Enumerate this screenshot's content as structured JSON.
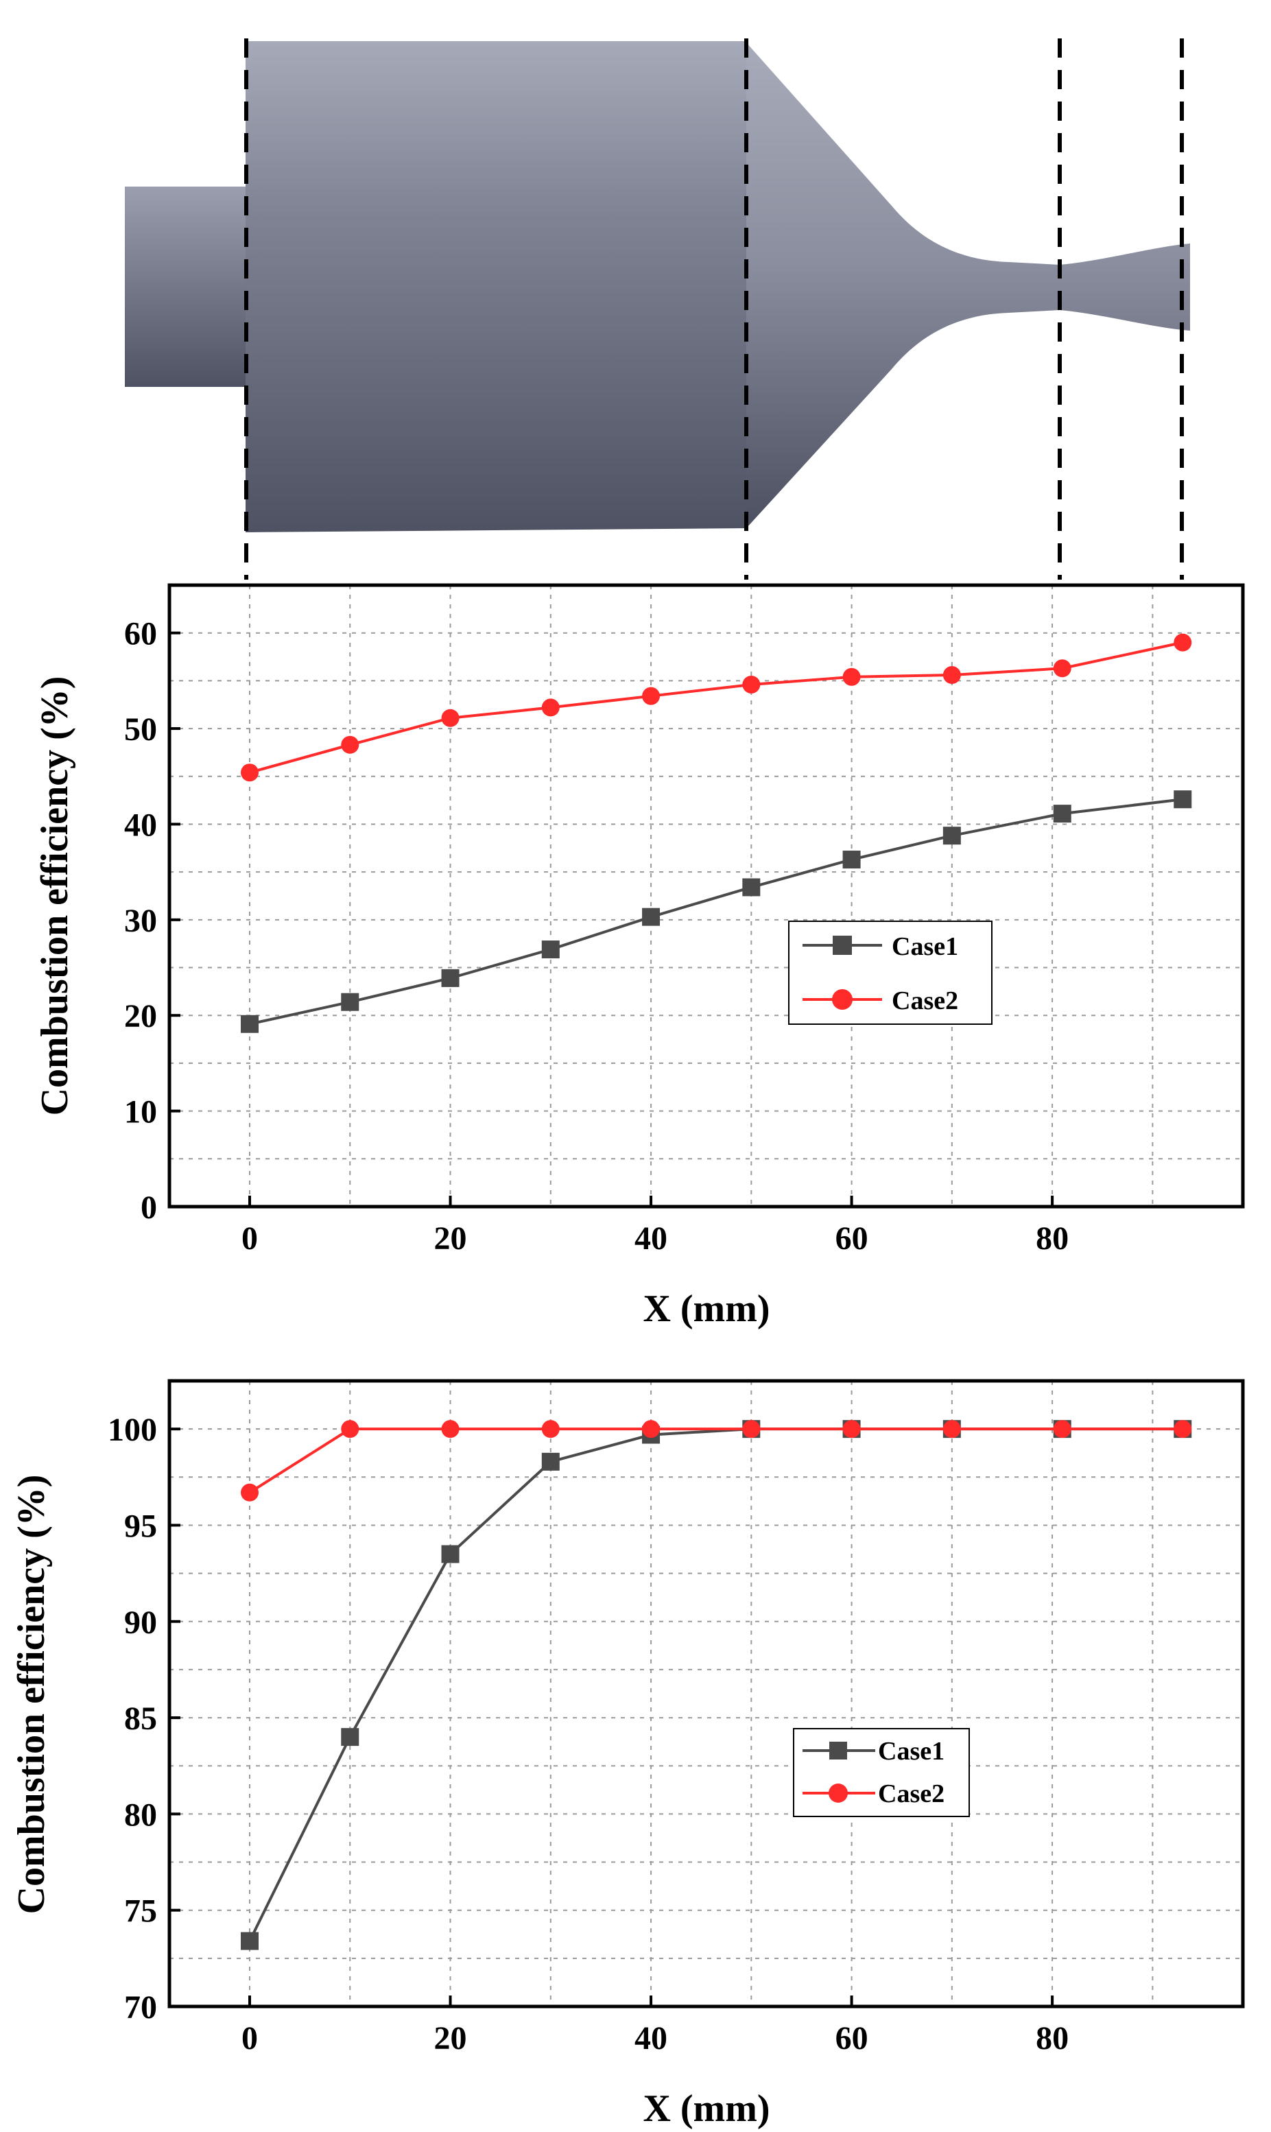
{
  "figure": {
    "illustration": "combustor-geometry-rendering"
  },
  "colors": {
    "case1": "#4a4a4a",
    "case2": "#ff2a2a",
    "geometry_light": "#a3a6b4",
    "geometry_dark": "#4f5363"
  },
  "chart_data": [
    {
      "type": "line",
      "title": "",
      "xlabel": "X (mm)",
      "ylabel": "Combustion efficiency (%)",
      "xlim": [
        -8,
        99
      ],
      "ylim": [
        0,
        65
      ],
      "xticks": [
        "0",
        "20",
        "40",
        "60",
        "80"
      ],
      "yticks": [
        "0",
        "10",
        "20",
        "30",
        "40",
        "50",
        "60"
      ],
      "grid": true,
      "legend_position": "center-right",
      "series": [
        {
          "name": "Case1",
          "marker": "square",
          "color": "#4a4a4a",
          "x": [
            0,
            10,
            20,
            30,
            40,
            50,
            60,
            70,
            81,
            93
          ],
          "y": [
            19.1,
            21.4,
            23.9,
            26.9,
            30.3,
            33.4,
            36.3,
            38.8,
            41.1,
            42.6
          ]
        },
        {
          "name": "Case2",
          "marker": "circle",
          "color": "#ff2a2a",
          "x": [
            0,
            10,
            20,
            30,
            40,
            50,
            60,
            70,
            81,
            93
          ],
          "y": [
            45.4,
            48.3,
            51.1,
            52.2,
            53.4,
            54.6,
            55.4,
            55.6,
            56.3,
            59.0
          ]
        }
      ]
    },
    {
      "type": "line",
      "title": "",
      "xlabel": "X (mm)",
      "ylabel": "Combustion efficiency (%)",
      "xlim": [
        -8,
        99
      ],
      "ylim": [
        70,
        102.5
      ],
      "xticks": [
        "0",
        "20",
        "40",
        "60",
        "80"
      ],
      "yticks": [
        "70",
        "75",
        "80",
        "85",
        "90",
        "95",
        "100"
      ],
      "grid": true,
      "legend_position": "center-right",
      "series": [
        {
          "name": "Case1",
          "marker": "square",
          "color": "#4a4a4a",
          "x": [
            0,
            10,
            20,
            30,
            40,
            50,
            60,
            70,
            81,
            93
          ],
          "y": [
            73.4,
            84.0,
            93.5,
            98.3,
            99.7,
            100,
            100,
            100,
            100,
            100
          ]
        },
        {
          "name": "Case2",
          "marker": "circle",
          "color": "#ff2a2a",
          "x": [
            0,
            10,
            20,
            30,
            40,
            50,
            60,
            70,
            81,
            93
          ],
          "y": [
            96.7,
            100,
            100,
            100,
            100,
            100,
            100,
            100,
            100,
            100
          ]
        }
      ]
    }
  ]
}
